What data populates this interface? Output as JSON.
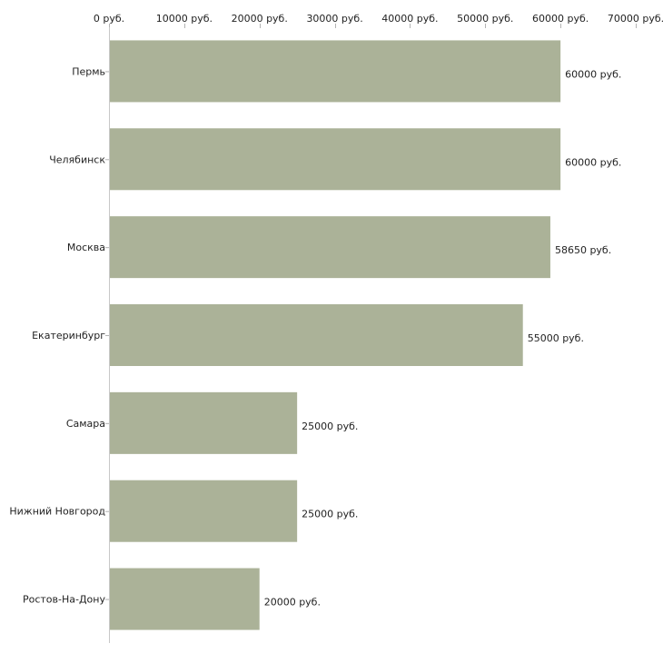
{
  "chart_data": {
    "type": "bar",
    "orientation": "horizontal",
    "title": "",
    "xlabel": "",
    "ylabel": "",
    "xlim": [
      0,
      70000
    ],
    "grid": false,
    "categories": [
      "Пермь",
      "Челябинск",
      "Москва",
      "Екатеринбург",
      "Самара",
      "Нижний Новгород",
      "Ростов-На-Дону"
    ],
    "values": [
      60000,
      60000,
      58650,
      55000,
      25000,
      25000,
      20000
    ],
    "value_labels": [
      "60000 руб.",
      "60000 руб.",
      "58650 руб.",
      "55000 руб.",
      "25000 руб.",
      "25000 руб.",
      "20000 руб."
    ],
    "ticks": [
      0,
      10000,
      20000,
      30000,
      40000,
      50000,
      60000,
      70000
    ],
    "tick_labels": [
      "0 руб.",
      "10000 руб.",
      "20000 руб.",
      "30000 руб.",
      "40000 руб.",
      "50000 руб.",
      "60000 руб.",
      "70000 руб."
    ],
    "bar_color": "#abb298",
    "axis_color": "#c8c8c8"
  }
}
